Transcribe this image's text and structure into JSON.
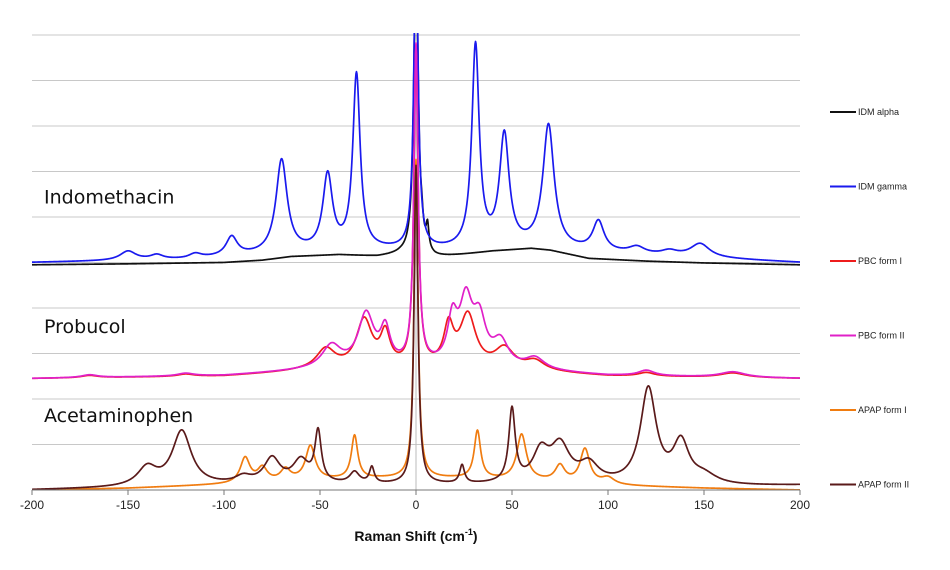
{
  "chart_data": {
    "type": "line",
    "title": "",
    "xlabel": "Raman Shift (cm",
    "xlabel_sup": "-1",
    "xlabel_end": ")",
    "ylabel": "",
    "xlim": [
      -200,
      200
    ],
    "ylim": [
      0,
      100
    ],
    "x_ticks": [
      -200,
      -150,
      -100,
      -50,
      0,
      50,
      100,
      150,
      200
    ],
    "gridlines_y": [
      0,
      10,
      20,
      30,
      40,
      50,
      60,
      70,
      80,
      90,
      100
    ],
    "grid": true,
    "legend_position": "right",
    "group_labels": [
      {
        "text": "Indomethacin",
        "y": 63
      },
      {
        "text": "Probucol",
        "y": 34.5
      },
      {
        "text": "Acetaminophen",
        "y": 15
      }
    ],
    "series": [
      {
        "name": "IDM alpha",
        "color": "#111111",
        "baseline": 49.5,
        "base_shape": [
          [
            -200,
            0
          ],
          [
            -150,
            0.2
          ],
          [
            -100,
            0.5
          ],
          [
            -80,
            1.0
          ],
          [
            -65,
            1.8
          ],
          [
            -40,
            2.2
          ],
          [
            -20,
            1.8
          ],
          [
            -8,
            2.2
          ],
          [
            10,
            1.5
          ],
          [
            20,
            2.0
          ],
          [
            40,
            3.0
          ],
          [
            60,
            3.6
          ],
          [
            70,
            3.2
          ],
          [
            90,
            1.4
          ],
          [
            120,
            0.8
          ],
          [
            150,
            0.4
          ],
          [
            200,
            0
          ]
        ],
        "peaks": [
          {
            "x": 0,
            "h": 70,
            "w": 1.3
          },
          {
            "x": 6,
            "h": 5.0,
            "w": 0.8
          },
          {
            "x": 3,
            "h": 3.0,
            "w": 0.8
          }
        ]
      },
      {
        "name": "IDM gamma",
        "color": "#1a1aee",
        "baseline": 50,
        "base_shape": [
          [
            -200,
            0
          ],
          [
            -120,
            0.6
          ],
          [
            -60,
            2
          ],
          [
            -20,
            2.5
          ],
          [
            0,
            2.5
          ],
          [
            20,
            2.5
          ],
          [
            60,
            3
          ],
          [
            120,
            1.5
          ],
          [
            200,
            0
          ]
        ],
        "peaks": [
          {
            "x": -150,
            "h": 2.0,
            "w": 5
          },
          {
            "x": -135,
            "h": 1.0,
            "w": 4
          },
          {
            "x": -115,
            "h": 1.0,
            "w": 4
          },
          {
            "x": -96,
            "h": 4.2,
            "w": 3.5
          },
          {
            "x": -70,
            "h": 20.5,
            "w": 3.5
          },
          {
            "x": -46,
            "h": 16.5,
            "w": 3
          },
          {
            "x": -31,
            "h": 38.5,
            "w": 2.3
          },
          {
            "x": 0,
            "h": 70,
            "w": 1.3
          },
          {
            "x": 31,
            "h": 44.5,
            "w": 2.3
          },
          {
            "x": 46,
            "h": 24.5,
            "w": 3
          },
          {
            "x": 69,
            "h": 27,
            "w": 3.5
          },
          {
            "x": 95,
            "h": 6.5,
            "w": 3.5
          },
          {
            "x": 115,
            "h": 1.5,
            "w": 5
          },
          {
            "x": 132,
            "h": 1.0,
            "w": 5
          },
          {
            "x": 148,
            "h": 3.0,
            "w": 6
          }
        ]
      },
      {
        "name": "PBC form I",
        "color": "#ee1c1c",
        "baseline": 24.5,
        "base_shape": [
          [
            -200,
            0
          ],
          [
            -100,
            0.5
          ],
          [
            -60,
            1.5
          ],
          [
            -10,
            2
          ],
          [
            10,
            2
          ],
          [
            60,
            1.5
          ],
          [
            100,
            0.5
          ],
          [
            200,
            0
          ]
        ],
        "peaks": [
          {
            "x": -170,
            "h": 0.5,
            "w": 5
          },
          {
            "x": -120,
            "h": 0.5,
            "w": 5
          },
          {
            "x": -47,
            "h": 4.5,
            "w": 6
          },
          {
            "x": -27,
            "h": 10.5,
            "w": 5
          },
          {
            "x": -16,
            "h": 7.0,
            "w": 3
          },
          {
            "x": 0,
            "h": 70,
            "w": 1.3
          },
          {
            "x": 17,
            "h": 8.5,
            "w": 3
          },
          {
            "x": 27,
            "h": 11.5,
            "w": 5
          },
          {
            "x": 46,
            "h": 4.5,
            "w": 6
          },
          {
            "x": 62,
            "h": 2.0,
            "w": 6
          },
          {
            "x": 120,
            "h": 0.8,
            "w": 5
          },
          {
            "x": 165,
            "h": 1.0,
            "w": 8
          }
        ]
      },
      {
        "name": "PBC form II",
        "color": "#e020c8",
        "baseline": 24.5,
        "base_shape": [
          [
            -200,
            0
          ],
          [
            -100,
            0.6
          ],
          [
            -60,
            1.6
          ],
          [
            -10,
            2.2
          ],
          [
            10,
            2.2
          ],
          [
            60,
            1.6
          ],
          [
            100,
            0.6
          ],
          [
            200,
            0
          ]
        ],
        "peaks": [
          {
            "x": -170,
            "h": 0.6,
            "w": 5
          },
          {
            "x": -120,
            "h": 0.6,
            "w": 5
          },
          {
            "x": -44,
            "h": 5.0,
            "w": 6
          },
          {
            "x": -26,
            "h": 11.5,
            "w": 5
          },
          {
            "x": -16,
            "h": 7.5,
            "w": 3
          },
          {
            "x": 0,
            "h": 70,
            "w": 1.3
          },
          {
            "x": 19,
            "h": 9.5,
            "w": 3
          },
          {
            "x": 26,
            "h": 13.5,
            "w": 4
          },
          {
            "x": 33,
            "h": 9.5,
            "w": 4
          },
          {
            "x": 44,
            "h": 5.5,
            "w": 5
          },
          {
            "x": 62,
            "h": 2.5,
            "w": 6
          },
          {
            "x": 120,
            "h": 1.2,
            "w": 5
          },
          {
            "x": 165,
            "h": 1.2,
            "w": 8
          }
        ]
      },
      {
        "name": "APAP form I",
        "color": "#f07c10",
        "baseline": 0,
        "base_shape": [
          [
            -200,
            0
          ],
          [
            -150,
            0.4
          ],
          [
            -100,
            1.2
          ],
          [
            -60,
            2
          ],
          [
            -20,
            2.5
          ],
          [
            0,
            2.5
          ],
          [
            20,
            2.5
          ],
          [
            60,
            2
          ],
          [
            100,
            1
          ],
          [
            150,
            0.4
          ],
          [
            200,
            0
          ]
        ],
        "peaks": [
          {
            "x": -89,
            "h": 5.5,
            "w": 3
          },
          {
            "x": -80,
            "h": 3.0,
            "w": 3
          },
          {
            "x": -68,
            "h": 2.5,
            "w": 3
          },
          {
            "x": -55,
            "h": 7.5,
            "w": 3
          },
          {
            "x": -32,
            "h": 9.5,
            "w": 2
          },
          {
            "x": 0,
            "h": 70,
            "w": 1.2
          },
          {
            "x": 32,
            "h": 10.5,
            "w": 2
          },
          {
            "x": 55,
            "h": 10.0,
            "w": 3
          },
          {
            "x": 75,
            "h": 3.5,
            "w": 3
          },
          {
            "x": 88,
            "h": 7.5,
            "w": 3
          },
          {
            "x": 100,
            "h": 1.5,
            "w": 4
          }
        ]
      },
      {
        "name": "APAP form II",
        "color": "#5a1a1a",
        "baseline": 0,
        "base_shape": [
          [
            -200,
            0
          ],
          [
            -140,
            0.5
          ],
          [
            -80,
            1.0
          ],
          [
            -20,
            1.0
          ],
          [
            0,
            1.0
          ],
          [
            20,
            1.0
          ],
          [
            80,
            1.0
          ],
          [
            140,
            0.5
          ],
          [
            200,
            1.0
          ]
        ],
        "peaks": [
          {
            "x": -140,
            "h": 4.0,
            "w": 6
          },
          {
            "x": -122,
            "h": 12.0,
            "w": 6
          },
          {
            "x": -90,
            "h": 1.5,
            "w": 5
          },
          {
            "x": -75,
            "h": 5.5,
            "w": 5
          },
          {
            "x": -60,
            "h": 5.0,
            "w": 5
          },
          {
            "x": -51,
            "h": 11.0,
            "w": 2
          },
          {
            "x": -32,
            "h": 2.5,
            "w": 3
          },
          {
            "x": -23,
            "h": 3.5,
            "w": 1.5
          },
          {
            "x": 0,
            "h": 70,
            "w": 1.2
          },
          {
            "x": 24,
            "h": 4.0,
            "w": 1.5
          },
          {
            "x": 50,
            "h": 16.0,
            "w": 2
          },
          {
            "x": 65,
            "h": 6.5,
            "w": 5
          },
          {
            "x": 75,
            "h": 8.0,
            "w": 6
          },
          {
            "x": 90,
            "h": 4.0,
            "w": 6
          },
          {
            "x": 121,
            "h": 21.0,
            "w": 5
          },
          {
            "x": 138,
            "h": 9.0,
            "w": 5
          },
          {
            "x": 150,
            "h": 2.0,
            "w": 8
          }
        ]
      }
    ]
  }
}
